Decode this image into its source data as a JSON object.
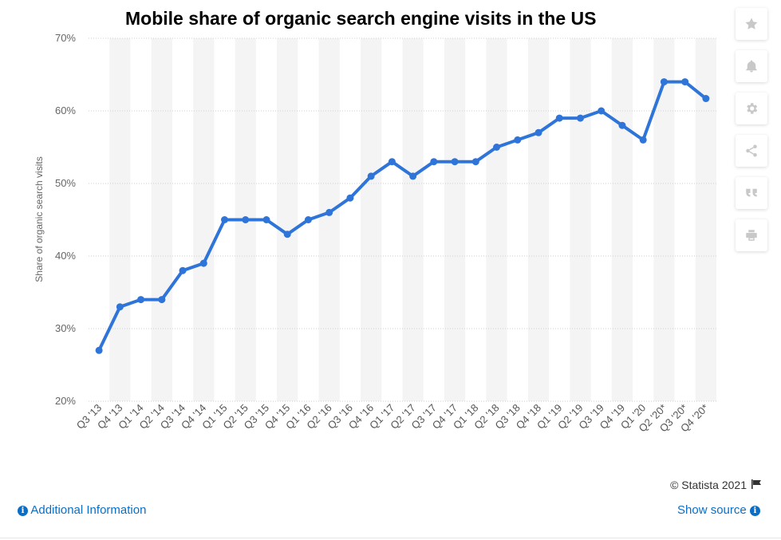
{
  "chart_data": {
    "type": "line",
    "title": "Mobile share of organic search engine visits in the US",
    "ylabel": "Share of organic search visits",
    "xlabel": "",
    "categories": [
      "Q3 '13",
      "Q4 '13",
      "Q1 '14",
      "Q2 '14",
      "Q3 '14",
      "Q4 '14",
      "Q1 '15",
      "Q2 '15",
      "Q3 '15",
      "Q4 '15",
      "Q1 '16",
      "Q2 '16",
      "Q3 '16",
      "Q4 '16",
      "Q1 '17",
      "Q2 '17",
      "Q3 '17",
      "Q4 '17",
      "Q1 '18",
      "Q2 '18",
      "Q3 '18",
      "Q4 '18",
      "Q1 '19",
      "Q2 '19",
      "Q3 '19",
      "Q4 '19",
      "Q1 '20",
      "Q2 '20*",
      "Q3 '20*",
      "Q4 '20*"
    ],
    "series": [
      {
        "values": [
          27,
          33,
          34,
          34,
          38,
          39,
          45,
          45,
          45,
          43,
          45,
          46,
          48,
          51,
          53,
          51,
          53,
          53,
          53,
          55,
          56,
          57,
          59,
          59,
          60,
          58,
          56,
          64,
          64,
          61.7
        ]
      }
    ],
    "ylim": [
      20,
      70
    ],
    "yticks": [
      "20%",
      "30%",
      "40%",
      "50%",
      "60%",
      "70%"
    ],
    "grid": true,
    "alternating_bands": true,
    "line_color": "#2f74d8"
  },
  "toolbar": {
    "buttons": [
      "star-icon",
      "bell-icon",
      "gear-icon",
      "share-icon",
      "quote-icon",
      "print-icon"
    ]
  },
  "footer": {
    "credit": "© Statista 2021",
    "additional_info": "Additional Information",
    "show_source": "Show source"
  }
}
